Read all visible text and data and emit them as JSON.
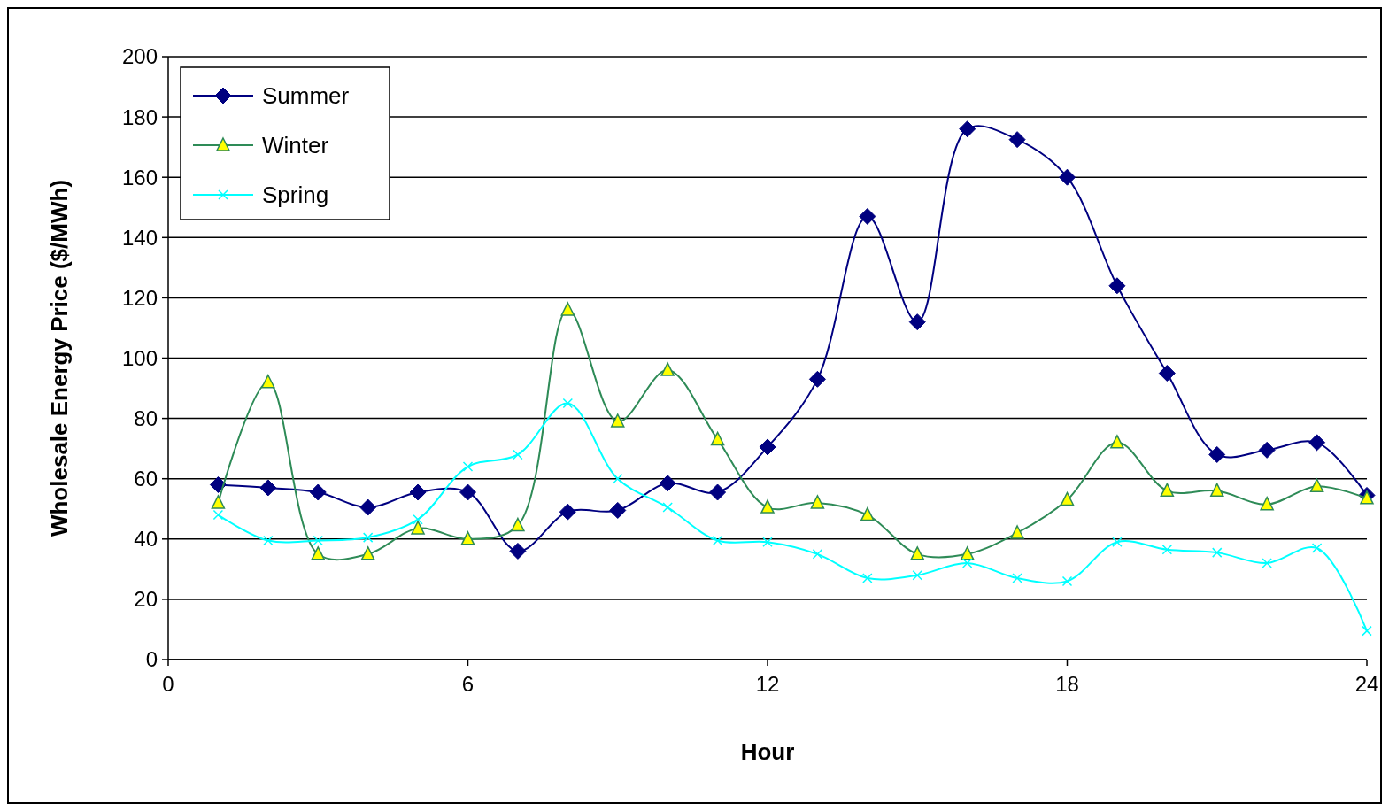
{
  "chart_data": {
    "type": "line",
    "xlabel": "Hour",
    "ylabel": "Wholesale Energy Price ($/MWh)",
    "x": [
      1,
      2,
      3,
      4,
      5,
      6,
      7,
      8,
      9,
      10,
      11,
      12,
      13,
      14,
      15,
      16,
      17,
      18,
      19,
      20,
      21,
      22,
      23,
      24
    ],
    "xlim": [
      0,
      24
    ],
    "xticks": [
      0,
      6,
      12,
      18,
      24
    ],
    "ylim": [
      0,
      200
    ],
    "yticks": [
      0,
      20,
      40,
      60,
      80,
      100,
      120,
      140,
      160,
      180,
      200
    ],
    "grid": "y",
    "legend": "top left",
    "line_style": "solid",
    "series": [
      {
        "name": "Summer",
        "color": "#000080",
        "marker": "diamond",
        "values": [
          58,
          57,
          55.5,
          50.5,
          55.5,
          55.5,
          36,
          49,
          49.5,
          58.5,
          55.5,
          70.5,
          93,
          147,
          112,
          176,
          172.5,
          160,
          124,
          95,
          68,
          69.5,
          72,
          54.5
        ]
      },
      {
        "name": "Winter",
        "color": "#2e8b57",
        "marker": "triangle",
        "values": [
          52,
          92,
          35,
          35,
          43.5,
          40,
          44.5,
          116,
          79,
          96,
          73,
          50.5,
          52,
          48,
          35,
          35,
          42,
          53,
          72,
          56,
          56,
          51.5,
          57.5,
          53.5
        ]
      },
      {
        "name": "Spring",
        "color": "#00ffff",
        "marker": "cross",
        "values": [
          48,
          39.5,
          39.5,
          40.5,
          46.5,
          64,
          68,
          85,
          60,
          50.5,
          39.5,
          39,
          35,
          27,
          28,
          32,
          27,
          26,
          39,
          36.5,
          35.5,
          32,
          37,
          9.5
        ]
      }
    ]
  }
}
